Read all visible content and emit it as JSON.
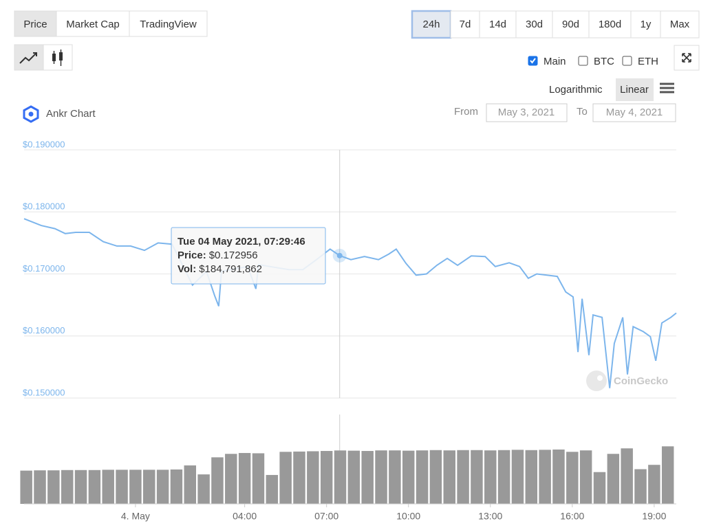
{
  "ui": {
    "tabs": [
      "Price",
      "Market Cap",
      "TradingView"
    ],
    "ranges": [
      "24h",
      "7d",
      "14d",
      "30d",
      "90d",
      "180d",
      "1y",
      "Max"
    ],
    "toggles": [
      "Main",
      "BTC",
      "ETH"
    ],
    "scales": [
      "Logarithmic",
      "Linear"
    ],
    "chart_name": "Ankr Chart",
    "from_label": "From",
    "from": "May 3, 2021",
    "to_label": "To",
    "to": "May 4, 2021",
    "watermark": "CoinGecko"
  },
  "chart_data": [
    {
      "type": "line",
      "color": "#7cb5ec",
      "log_scale": false,
      "grid": true,
      "xlim": [
        -4.08,
        19.81
      ],
      "x": [
        -4.08,
        -3.45,
        -2.95,
        -2.57,
        -2.19,
        -1.69,
        -1.18,
        -0.68,
        -0.18,
        0.33,
        0.83,
        1.34,
        2.09,
        2.6,
        2.9,
        3.05,
        3.15,
        4.11,
        4.41,
        4.51,
        5.62,
        6.13,
        6.63,
        7.13,
        7.48,
        7.89,
        8.39,
        8.9,
        9.28,
        9.55,
        9.91,
        10.28,
        10.66,
        11.04,
        11.42,
        11.8,
        12.3,
        12.81,
        13.18,
        13.69,
        14.07,
        14.39,
        14.7,
        15.07,
        15.45,
        15.76,
        16.03,
        16.21,
        16.36,
        16.61,
        16.76,
        17.09,
        17.37,
        17.54,
        17.85,
        18.02,
        18.23,
        18.6,
        18.86,
        19.06,
        19.28,
        19.61,
        19.81
      ],
      "values": [
        0.1789,
        0.1778,
        0.1773,
        0.1765,
        0.1767,
        0.1767,
        0.1752,
        0.1745,
        0.1745,
        0.1738,
        0.175,
        0.1748,
        0.1682,
        0.1704,
        0.1665,
        0.1648,
        0.1704,
        0.1712,
        0.1676,
        0.1715,
        0.1707,
        0.1707,
        0.1723,
        0.174,
        0.172956,
        0.1723,
        0.1728,
        0.1723,
        0.1732,
        0.174,
        0.1717,
        0.1698,
        0.17,
        0.1714,
        0.1725,
        0.1714,
        0.1729,
        0.1728,
        0.1712,
        0.1718,
        0.1712,
        0.1693,
        0.17,
        0.1698,
        0.1696,
        0.1671,
        0.1663,
        0.1574,
        0.166,
        0.1569,
        0.1634,
        0.163,
        0.1516,
        0.1588,
        0.163,
        0.1538,
        0.1615,
        0.1607,
        0.1599,
        0.156,
        0.1621,
        0.163,
        0.1637
      ],
      "ylim": [
        0.15,
        0.19
      ],
      "yticks": [
        {
          "value": 0.19,
          "label": "$0.190000"
        },
        {
          "value": 0.18,
          "label": "$0.180000"
        },
        {
          "value": 0.17,
          "label": "$0.170000"
        },
        {
          "value": 0.16,
          "label": "$0.160000"
        },
        {
          "value": 0.15,
          "label": "$0.150000"
        }
      ],
      "tooltip": {
        "x": 7.48,
        "date": "Tue 04 May 2021, 07:29:46",
        "price_label": "Price:",
        "price": "$0.172956",
        "vol_label": "Vol:",
        "vol": "$184,791,862"
      }
    },
    {
      "type": "bar",
      "color": "#999999",
      "xlim": [
        -4.08,
        19.81
      ],
      "xticks": [
        {
          "value": 0,
          "label": "4. May"
        },
        {
          "value": 4,
          "label": "04:00"
        },
        {
          "value": 7,
          "label": "07:00"
        },
        {
          "value": 10,
          "label": "10:00"
        },
        {
          "value": 13,
          "label": "13:00"
        },
        {
          "value": 16,
          "label": "16:00"
        },
        {
          "value": 19,
          "label": "19:00"
        }
      ],
      "x": [
        -4,
        -3.5,
        -3,
        -2.5,
        -2,
        -1.5,
        -1,
        -0.5,
        0,
        0.5,
        1,
        1.5,
        2,
        2.5,
        3,
        3.5,
        4,
        4.5,
        5,
        5.5,
        6,
        6.5,
        7,
        7.5,
        8,
        8.5,
        9,
        9.5,
        10,
        10.5,
        11,
        11.5,
        12,
        12.5,
        13,
        13.5,
        14,
        14.5,
        15,
        15.5,
        16,
        16.5,
        17,
        17.5,
        18,
        18.5,
        19,
        19.5
      ],
      "values": [
        115000000,
        116000000,
        116000000,
        117000000,
        117000000,
        117000000,
        118000000,
        118000000,
        118000000,
        118000000,
        118000000,
        119000000,
        133000000,
        102000000,
        161000000,
        173000000,
        176000000,
        175000000,
        100000000,
        180000000,
        181000000,
        182000000,
        183000000,
        184791862,
        184000000,
        183000000,
        185000000,
        185000000,
        184000000,
        185000000,
        186000000,
        185000000,
        186000000,
        186000000,
        185000000,
        186000000,
        187000000,
        186000000,
        187000000,
        188000000,
        180000000,
        185000000,
        110000000,
        173000000,
        192000000,
        120000000,
        135000000,
        199000000
      ],
      "ylim": [
        0,
        340000000
      ]
    }
  ]
}
